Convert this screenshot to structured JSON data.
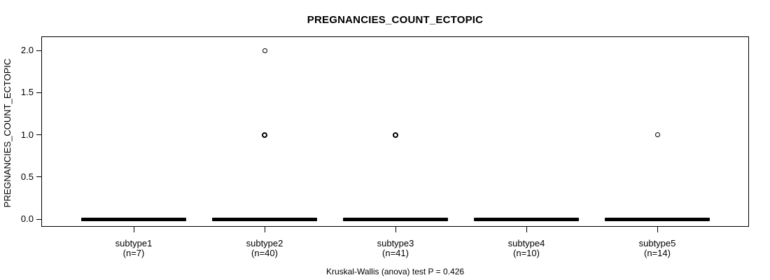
{
  "chart_data": {
    "type": "boxplot",
    "title": "PREGNANCIES_COUNT_ECTOPIC",
    "ylabel": "PREGNANCIES_COUNT_ECTOPIC",
    "xlabel": "",
    "caption": "Kruskal-Wallis (anova) test P = 0.426",
    "ylim": [
      0.0,
      2.0
    ],
    "yticks": [
      "0.0",
      "0.5",
      "1.0",
      "1.5",
      "2.0"
    ],
    "grid": false,
    "legend": "none",
    "groups": [
      {
        "label": "subtype1",
        "n_label": "(n=7)",
        "n": 7,
        "median": 0,
        "q1": 0,
        "q3": 0,
        "whisker_low": 0,
        "whisker_high": 0,
        "outliers": []
      },
      {
        "label": "subtype2",
        "n_label": "(n=40)",
        "n": 40,
        "median": 0,
        "q1": 0,
        "q3": 0,
        "whisker_low": 0,
        "whisker_high": 0,
        "outliers": [
          {
            "value": 2.0,
            "overplotted": false
          },
          {
            "value": 1.0,
            "overplotted": true
          }
        ]
      },
      {
        "label": "subtype3",
        "n_label": "(n=41)",
        "n": 41,
        "median": 0,
        "q1": 0,
        "q3": 0,
        "whisker_low": 0,
        "whisker_high": 0,
        "outliers": [
          {
            "value": 1.0,
            "overplotted": true
          }
        ]
      },
      {
        "label": "subtype4",
        "n_label": "(n=10)",
        "n": 10,
        "median": 0,
        "q1": 0,
        "q3": 0,
        "whisker_low": 0,
        "whisker_high": 0,
        "outliers": []
      },
      {
        "label": "subtype5",
        "n_label": "(n=14)",
        "n": 14,
        "median": 0,
        "q1": 0,
        "q3": 0,
        "whisker_low": 0,
        "whisker_high": 0,
        "outliers": [
          {
            "value": 1.0,
            "overplotted": false
          }
        ]
      }
    ],
    "stat_test": {
      "name": "Kruskal-Wallis (anova)",
      "p_value": 0.426
    },
    "colors": {
      "box": "#000000",
      "frame": "#000000",
      "text": "#000000",
      "background": "#ffffff"
    }
  }
}
